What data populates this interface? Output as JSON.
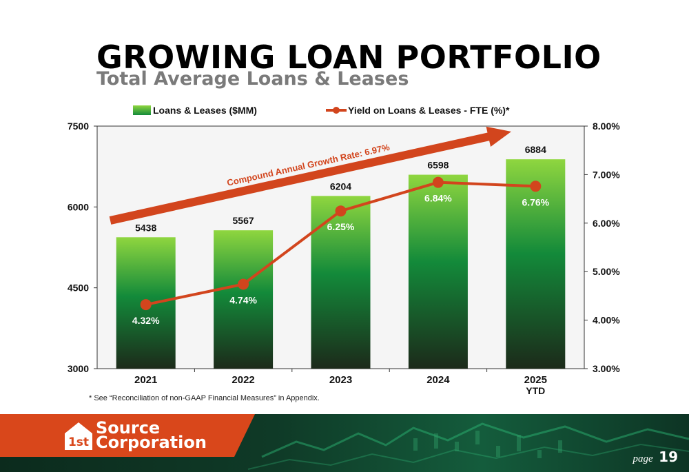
{
  "header": {
    "title": "GROWING LOAN PORTFOLIO",
    "subtitle": "Total Average Loans & Leases"
  },
  "chart_data": {
    "type": "bar",
    "categories": [
      "2021",
      "2022",
      "2023",
      "2024",
      "2025"
    ],
    "category_sublabels": [
      "",
      "",
      "",
      "",
      "YTD"
    ],
    "series": [
      {
        "name": "Loans & Leases ($MM)",
        "type": "bar",
        "axis": "left",
        "values": [
          5438,
          5567,
          6204,
          6598,
          6884
        ],
        "labels": [
          "5438",
          "5567",
          "6204",
          "6598",
          "6884"
        ]
      },
      {
        "name": "Yield on Loans & Leases - FTE (%)*",
        "type": "line",
        "axis": "right",
        "values": [
          4.32,
          4.74,
          6.25,
          6.84,
          6.76
        ],
        "labels": [
          "4.32%",
          "4.74%",
          "6.25%",
          "6.84%",
          "6.76%"
        ]
      }
    ],
    "y_left": {
      "range": [
        3000,
        7500
      ],
      "ticks": [
        "3000",
        "4500",
        "6000",
        "7500"
      ],
      "tick_values": [
        3000,
        4500,
        6000,
        7500
      ]
    },
    "y_right": {
      "range": [
        3.0,
        8.0
      ],
      "ticks": [
        "3.00%",
        "4.00%",
        "5.00%",
        "6.00%",
        "7.00%",
        "8.00%"
      ],
      "tick_values": [
        3,
        4,
        5,
        6,
        7,
        8
      ]
    },
    "annotation": "Compound Annual Growth Rate: 6.97%",
    "legend_position": "top",
    "grid": false,
    "colors": {
      "bar_top": "#8fd63f",
      "bar_mid": "#138a3a",
      "bar_bottom": "#1c2a1a",
      "line": "#d2451d",
      "arrow": "#d2451d",
      "plot_bg": "#f5f5f5"
    }
  },
  "footnote": "* See “Reconciliation of non-GAAP Financial Measures” in Appendix.",
  "footer": {
    "brand_line1": "Source",
    "brand_line2": "Corporation",
    "logo_mark": "1st",
    "page_label": "page",
    "page_number": "19",
    "brand_color": "#d9471b"
  }
}
